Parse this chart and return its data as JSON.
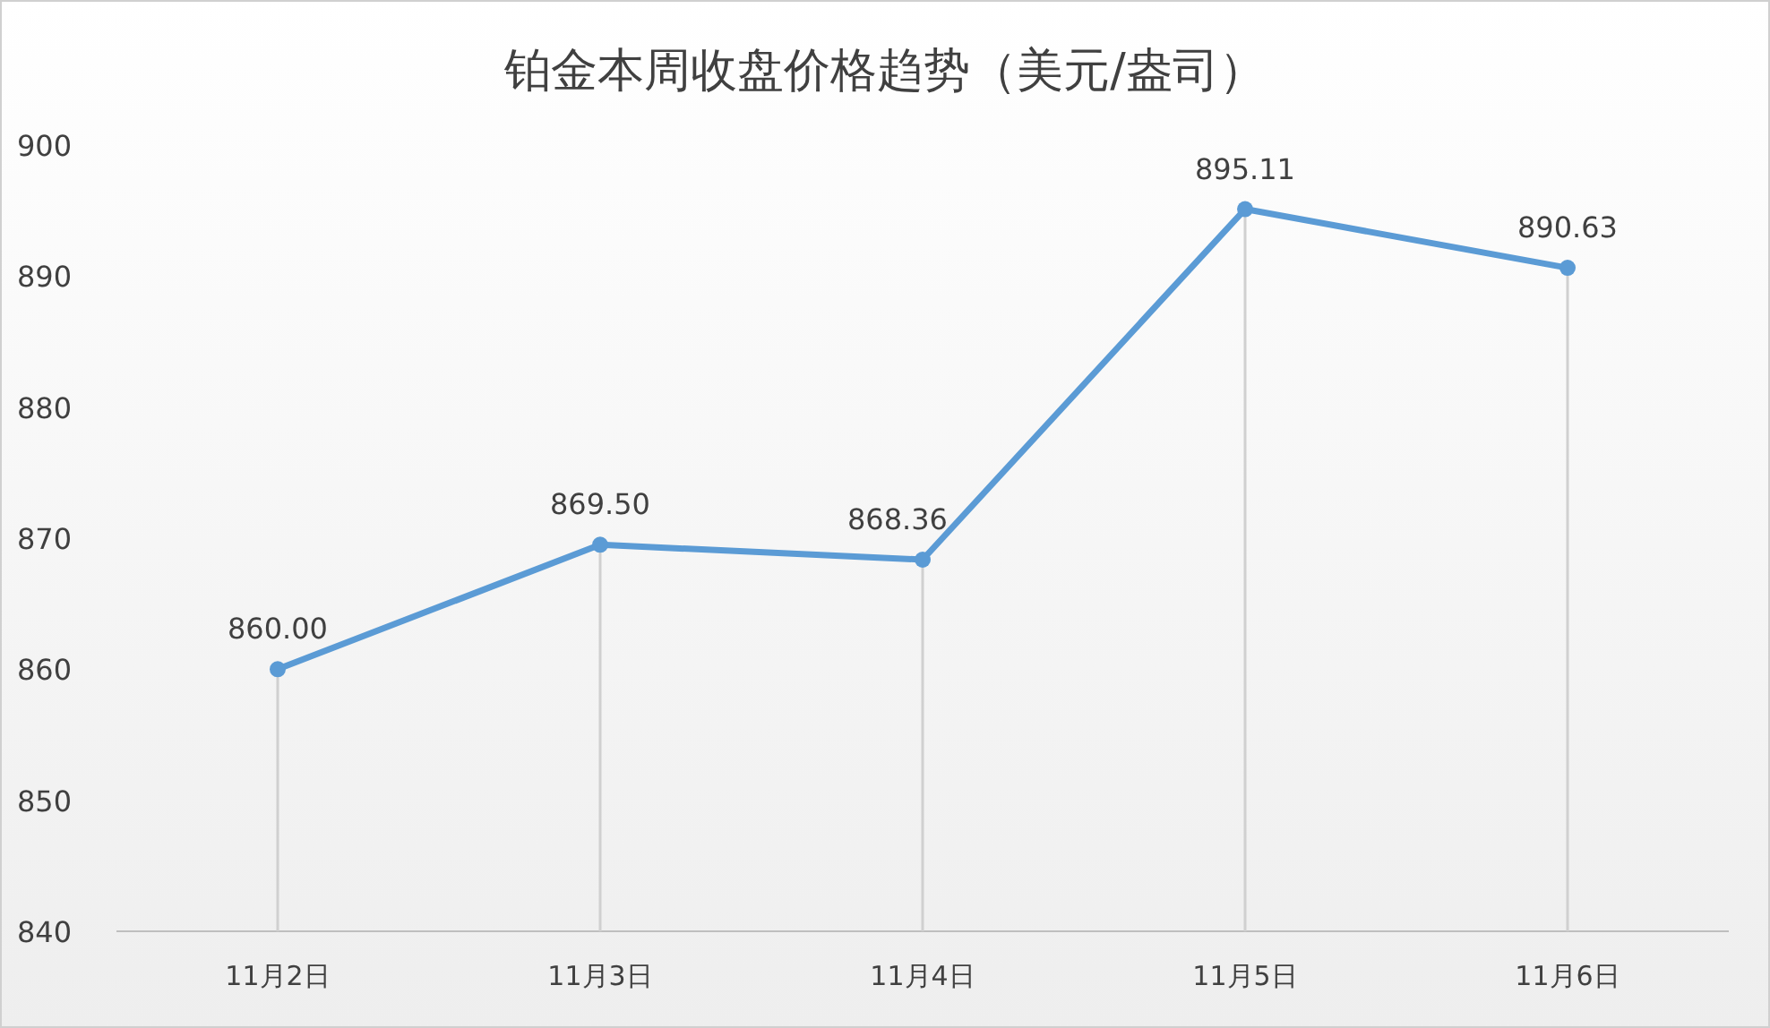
{
  "chart_data": {
    "type": "line",
    "title": "铂金本周收盘价格趋势（美元/盎司）",
    "categories": [
      "11月2日",
      "11月3日",
      "11月4日",
      "11月5日",
      "11月6日"
    ],
    "series": [
      {
        "color": "#5b9bd5",
        "values": [
          860.0,
          869.5,
          868.36,
          895.11,
          890.63
        ],
        "value_labels": [
          "860.00",
          "869.50",
          "868.36",
          "895.11",
          "890.63"
        ]
      }
    ],
    "ylim": [
      840,
      900
    ],
    "yticks": [
      840,
      850,
      860,
      870,
      880,
      890,
      900
    ],
    "marker": "circle",
    "line_style": "solid"
  }
}
